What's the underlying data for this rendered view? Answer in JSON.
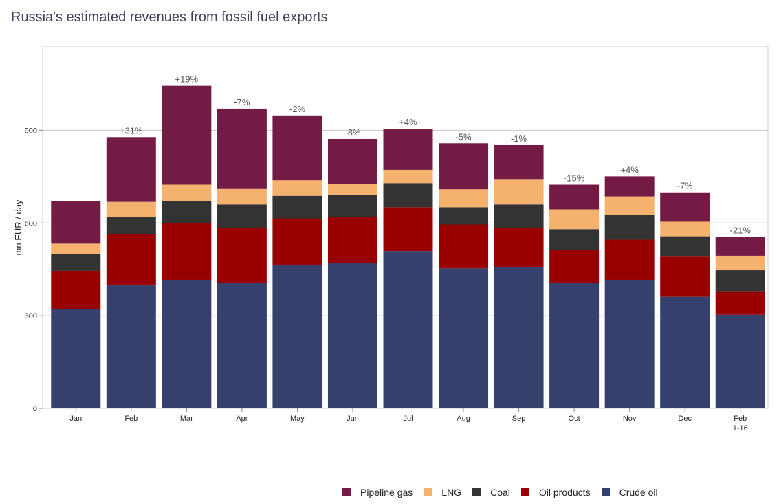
{
  "title": "Russia's estimated revenues from fossil fuel exports",
  "colors": {
    "pipeline_gas": "#731b45",
    "lng": "#f5b26e",
    "coal": "#333333",
    "oil_products": "#990000",
    "crude_oil": "#35406d"
  },
  "legend": [
    {
      "key": "pipeline_gas",
      "label": "Pipeline gas"
    },
    {
      "key": "lng",
      "label": "LNG"
    },
    {
      "key": "coal",
      "label": "Coal"
    },
    {
      "key": "oil_products",
      "label": "Oil products"
    },
    {
      "key": "crude_oil",
      "label": "Crude oil"
    }
  ],
  "chart_data": {
    "type": "bar",
    "stacked": true,
    "title": "Russia's estimated revenues from fossil fuel exports",
    "xlabel": "",
    "ylabel": "mn EUR / day",
    "ylim": [
      0,
      1170
    ],
    "yticks": [
      0,
      300,
      600,
      900
    ],
    "grid": true,
    "legend_position": "bottom",
    "categories": [
      "Jan",
      "Feb",
      "Mar",
      "Apr",
      "May",
      "Jun",
      "Jul",
      "Aug",
      "Sep",
      "Oct",
      "Nov",
      "Dec",
      "Feb\n1-16"
    ],
    "change_labels": [
      "",
      "+31%",
      "+19%",
      "-7%",
      "-2%",
      "-8%",
      "+4%",
      "-5%",
      "-1%",
      "-15%",
      "+4%",
      "-7%",
      "-21%"
    ],
    "series": [
      {
        "key": "crude_oil",
        "name": "Crude oil",
        "values": [
          322,
          398,
          416,
          405,
          465,
          471,
          509,
          453,
          458,
          405,
          416,
          361,
          303
        ]
      },
      {
        "key": "oil_products",
        "name": "Oil products",
        "values": [
          123,
          167,
          183,
          180,
          150,
          148,
          142,
          142,
          126,
          107,
          130,
          130,
          76
        ]
      },
      {
        "key": "coal",
        "name": "Coal",
        "values": [
          55,
          55,
          72,
          75,
          73,
          73,
          78,
          56,
          76,
          68,
          80,
          66,
          68
        ]
      },
      {
        "key": "lng",
        "name": "LNG",
        "values": [
          33,
          48,
          53,
          50,
          50,
          35,
          43,
          58,
          80,
          64,
          60,
          47,
          47
        ]
      },
      {
        "key": "pipeline_gas",
        "name": "Pipeline gas",
        "values": [
          137,
          210,
          320,
          260,
          210,
          145,
          133,
          149,
          112,
          80,
          65,
          95,
          61
        ]
      }
    ]
  }
}
